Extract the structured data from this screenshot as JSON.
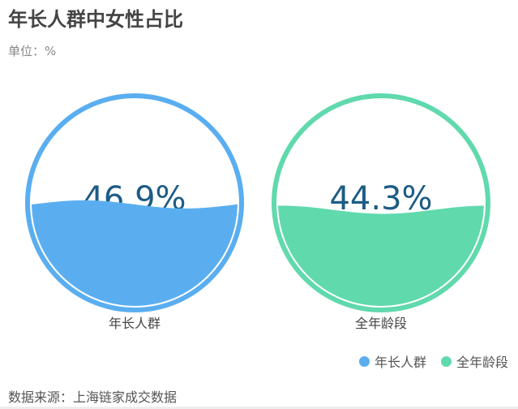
{
  "title": "年长人群中女性占比",
  "unit": "单位：%",
  "source": "数据来源：上海链家成交数据",
  "chart_data": {
    "type": "liquidfill",
    "series": [
      {
        "name": "年长人群",
        "value": 46.9,
        "label": "46.9%",
        "color": "#5aaef0"
      },
      {
        "name": "全年龄段",
        "value": 44.3,
        "label": "44.3%",
        "color": "#60d9ad"
      }
    ],
    "text_color": "#1d5c85",
    "legend": "bottom-right"
  }
}
